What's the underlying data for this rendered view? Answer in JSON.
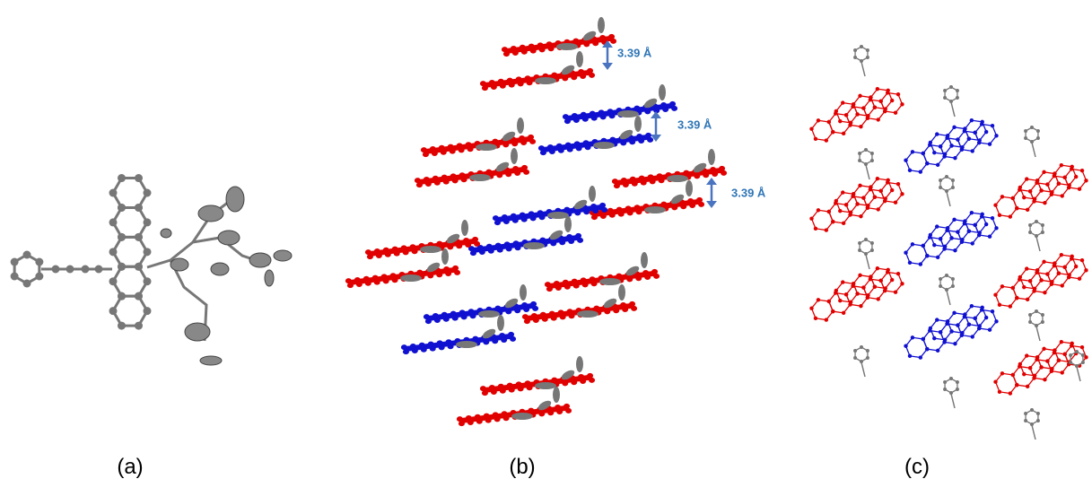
{
  "panels": [
    {
      "label": "(a)"
    },
    {
      "label": "(b)",
      "annotations": [
        "3.39 Å",
        "3.39 Å",
        "3.39 Å"
      ]
    },
    {
      "label": "(c)"
    }
  ]
}
